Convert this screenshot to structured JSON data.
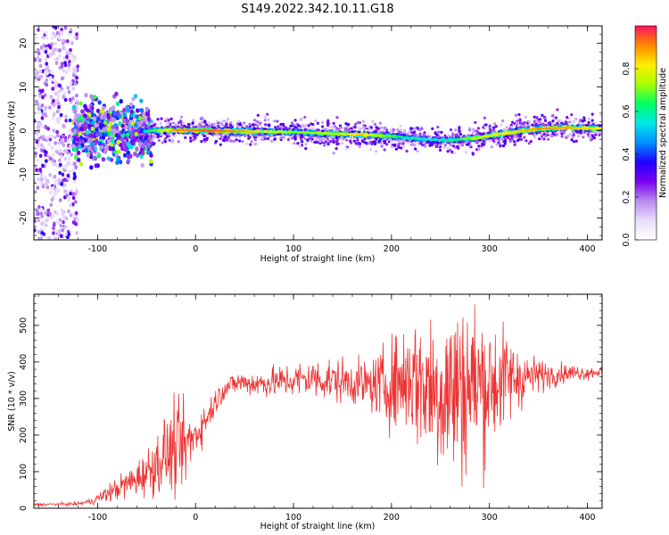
{
  "title": "S149.2022.342.10.11.G18",
  "chart_data": [
    {
      "type": "heatmap",
      "xlabel": "Height of straight line (km)",
      "ylabel": "Frequency (Hz)",
      "xlim": [
        -165,
        415
      ],
      "ylim": [
        -25,
        24
      ],
      "xticks": [
        "-100",
        "0",
        "100",
        "200",
        "300",
        "400"
      ],
      "xtick_values": [
        -100,
        0,
        100,
        200,
        300,
        400
      ],
      "yticks": [
        "-20",
        "-10",
        "0",
        "10",
        "20"
      ],
      "ytick_values": [
        -20,
        -10,
        0,
        10,
        20
      ],
      "colorbar": {
        "label": "Normalized spectral amplitude",
        "range": [
          0,
          1
        ],
        "ticks": [
          "0.0",
          "0.2",
          "0.4",
          "0.6",
          "0.8"
        ],
        "tick_values": [
          0.0,
          0.2,
          0.4,
          0.6,
          0.8
        ],
        "colormap": [
          "#ffffff",
          "#e9ddfb",
          "#b88af0",
          "#7b00f0",
          "#2000ff",
          "#0090ff",
          "#00e8e8",
          "#00ff60",
          "#a8ff00",
          "#ffee00",
          "#ff8800",
          "#ff1060"
        ]
      },
      "ridge": {
        "x": [
          -50,
          -20,
          20,
          60,
          100,
          140,
          170,
          195,
          215,
          240,
          260,
          285,
          310,
          330,
          350,
          380,
          415
        ],
        "frequency": [
          0.0,
          0.1,
          0.0,
          -0.2,
          -0.3,
          -0.7,
          -0.9,
          -1.2,
          -1.6,
          -2.1,
          -2.2,
          -1.7,
          -0.8,
          -0.1,
          0.5,
          0.7,
          0.5
        ],
        "amplitude": [
          0.6,
          0.9,
          0.95,
          0.85,
          0.7,
          0.75,
          0.85,
          0.7,
          0.6,
          0.55,
          0.6,
          0.75,
          0.8,
          0.85,
          0.9,
          0.88,
          0.8
        ]
      }
    },
    {
      "type": "line",
      "xlabel": "Height of straight line (km)",
      "ylabel": "SNR (10 * v/v)",
      "xlim": [
        -165,
        415
      ],
      "ylim": [
        0,
        585
      ],
      "xticks": [
        "-100",
        "0",
        "100",
        "200",
        "300",
        "400"
      ],
      "xtick_values": [
        -100,
        0,
        100,
        200,
        300,
        400
      ],
      "yticks": [
        "0",
        "100",
        "200",
        "300",
        "400",
        "500"
      ],
      "ytick_values": [
        0,
        100,
        200,
        300,
        400,
        500
      ],
      "series": [
        {
          "color": "#ee3333",
          "x": [
            -165,
            -120,
            -105,
            -90,
            -75,
            -60,
            -45,
            -30,
            -20,
            -10,
            -5,
            0,
            10,
            20,
            30,
            45,
            60,
            80,
            100,
            120,
            140,
            160,
            180,
            200,
            220,
            240,
            260,
            280,
            300,
            320,
            340,
            360,
            380,
            400,
            415
          ],
          "y": [
            10,
            12,
            20,
            40,
            60,
            80,
            110,
            150,
            160,
            170,
            185,
            200,
            240,
            290,
            330,
            345,
            340,
            345,
            350,
            355,
            350,
            345,
            335,
            340,
            360,
            330,
            320,
            340,
            340,
            355,
            360,
            365,
            370,
            370,
            375
          ],
          "spread": [
            3,
            4,
            8,
            20,
            30,
            40,
            60,
            90,
            100,
            90,
            70,
            50,
            40,
            30,
            25,
            25,
            30,
            35,
            40,
            45,
            50,
            50,
            60,
            100,
            140,
            180,
            220,
            200,
            160,
            100,
            50,
            30,
            20,
            15,
            12
          ]
        }
      ]
    }
  ]
}
